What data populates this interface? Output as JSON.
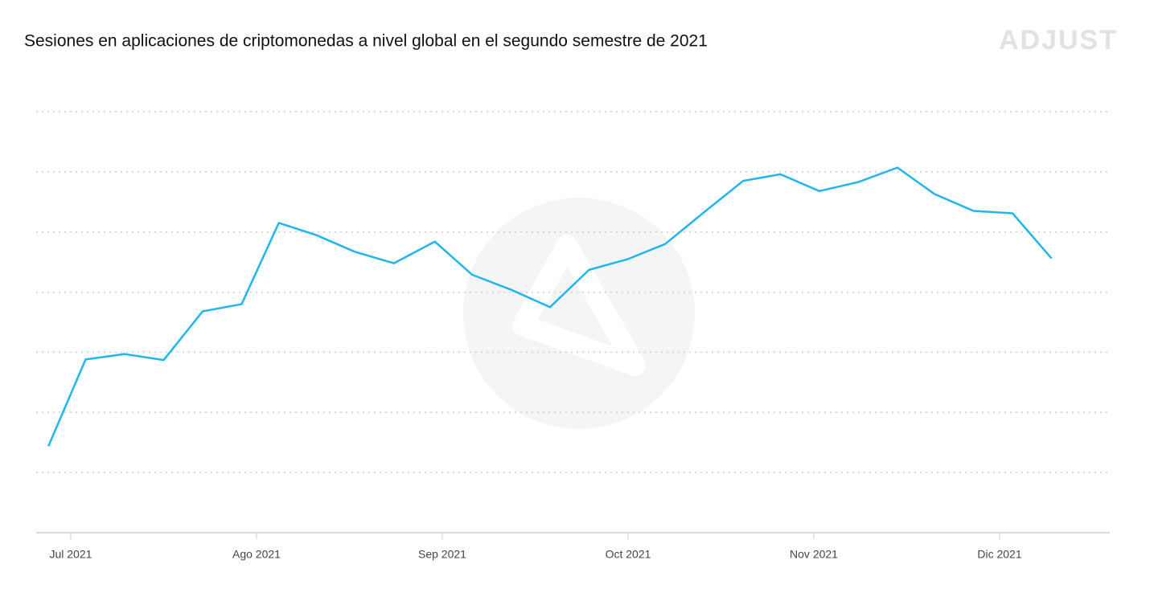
{
  "chart_data": {
    "type": "line",
    "title": "Sesiones en aplicaciones de criptomonedas a nivel global en el segundo semestre de 2021",
    "brand": "ADJUST",
    "x": [
      -0.12,
      0.08,
      0.29,
      0.5,
      0.71,
      0.92,
      1.12,
      1.32,
      1.53,
      1.74,
      1.96,
      2.16,
      2.37,
      2.58,
      2.79,
      3.0,
      3.2,
      3.41,
      3.62,
      3.82,
      4.03,
      4.24,
      4.45,
      4.65,
      4.86,
      5.07,
      5.28
    ],
    "values": [
      1.44,
      2.88,
      2.97,
      2.87,
      3.68,
      3.8,
      5.15,
      4.95,
      4.67,
      4.48,
      4.84,
      4.29,
      4.04,
      3.75,
      4.37,
      4.55,
      4.8,
      5.33,
      5.85,
      5.96,
      5.68,
      5.83,
      6.07,
      5.63,
      5.35,
      5.31,
      4.56
    ],
    "color": "#1fb6ee",
    "xlim": [
      -0.186,
      5.593
    ],
    "xticks": [
      {
        "value": 0,
        "label": "Jul 2021"
      },
      {
        "value": 1,
        "label": "Ago 2021"
      },
      {
        "value": 2,
        "label": "Sep 2021"
      },
      {
        "value": 3,
        "label": "Oct 2021"
      },
      {
        "value": 4,
        "label": "Nov 2021"
      },
      {
        "value": 5,
        "label": "Dic 2021"
      }
    ],
    "ylim": [
      0,
      7
    ],
    "yticks": [
      1,
      2,
      3,
      4,
      5,
      6,
      7
    ],
    "grid": true
  }
}
